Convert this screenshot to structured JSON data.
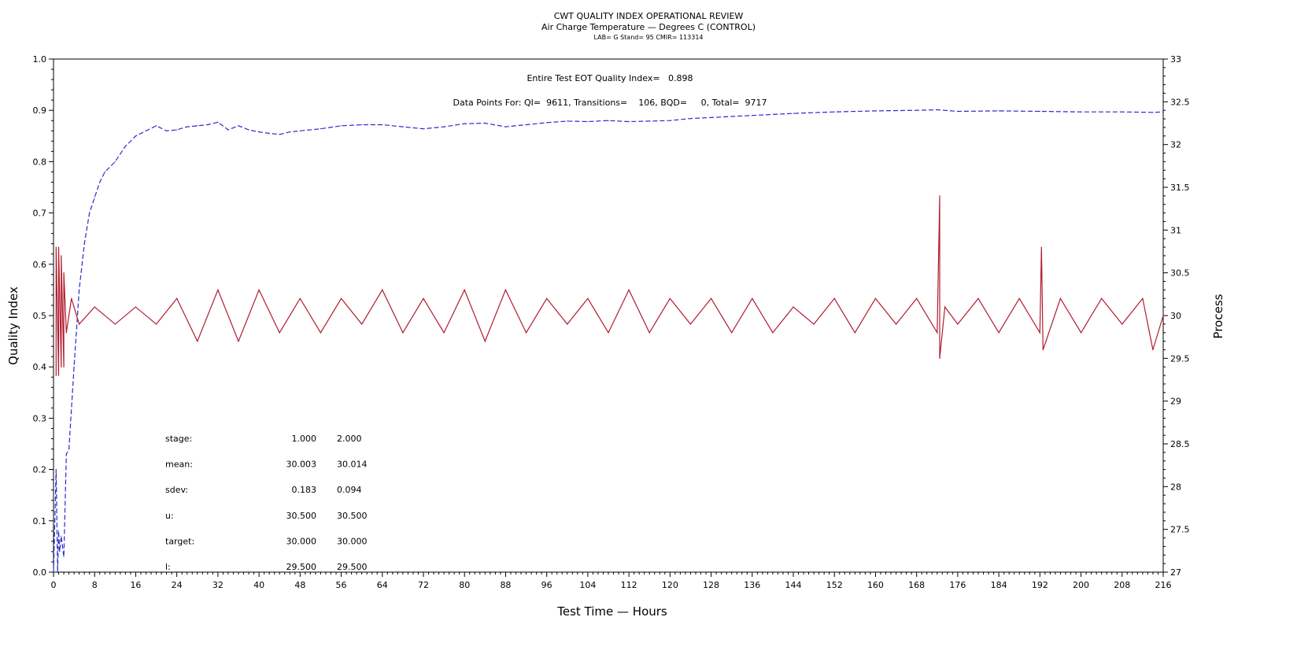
{
  "titles": {
    "line1": "CWT QUALITY INDEX OPERATIONAL REVIEW",
    "line2": "Air Charge Temperature — Degrees C (CONTROL)",
    "line3": "LAB= G Stand= 95 CMIR= 113314"
  },
  "annotations": {
    "eot": "Entire Test EOT Quality Index=   0.898",
    "datapoints": "Data Points For: QI=  9611, Transitions=    106, BQD=     0, Total=  9717"
  },
  "stats": {
    "rows": [
      {
        "label": "stage:",
        "v1": "1.000",
        "v2": "2.000"
      },
      {
        "label": "mean:",
        "v1": "30.003",
        "v2": "30.014"
      },
      {
        "label": "sdev:",
        "v1": "0.183",
        "v2": "0.094"
      },
      {
        "label": "u:",
        "v1": "30.500",
        "v2": "30.500"
      },
      {
        "label": "target:",
        "v1": "30.000",
        "v2": "30.000"
      },
      {
        "label": "l:",
        "v1": "29.500",
        "v2": "29.500"
      }
    ]
  },
  "colors": {
    "quality_index": "#2a2acc",
    "process": "#b01c2e",
    "axis": "#000000"
  },
  "chart_data": {
    "type": "line",
    "xlabel": "Test Time — Hours",
    "ylabel": "Quality Index",
    "y2label": "Process",
    "xlim": [
      0,
      216
    ],
    "ylim": [
      0,
      1.0
    ],
    "y2lim": [
      27,
      33
    ],
    "xticks": [
      "0",
      "8",
      "16",
      "24",
      "32",
      "40",
      "48",
      "56",
      "64",
      "72",
      "80",
      "88",
      "96",
      "104",
      "112",
      "120",
      "128",
      "136",
      "144",
      "152",
      "160",
      "168",
      "176",
      "184",
      "192",
      "200",
      "208",
      "216"
    ],
    "yticks": [
      "0.0",
      "0.1",
      "0.2",
      "0.3",
      "0.4",
      "0.5",
      "0.6",
      "0.7",
      "0.8",
      "0.9",
      "1.0"
    ],
    "y2ticks": [
      "27",
      "27.5",
      "28",
      "28.5",
      "29",
      "29.5",
      "30",
      "30.5",
      "31",
      "31.5",
      "32",
      "32.5",
      "33"
    ],
    "grid": false,
    "series": [
      {
        "axis": "left",
        "style": "dashed",
        "x": [
          0,
          0.5,
          0.8,
          1.0,
          1.2,
          1.5,
          2.0,
          2.5,
          3.0,
          4.0,
          5.0,
          6.0,
          7.0,
          8.0,
          9.0,
          10.0,
          12.0,
          14.0,
          16.0,
          18.0,
          20.0,
          22.0,
          24.0,
          26.0,
          28.0,
          30.0,
          32.0,
          34.0,
          36.0,
          38.0,
          40.0,
          42.0,
          44.0,
          46.0,
          48.0,
          52.0,
          56.0,
          60.0,
          64.0,
          68.0,
          72.0,
          76.0,
          80.0,
          84.0,
          88.0,
          92.0,
          96.0,
          100.0,
          104.0,
          108.0,
          112.0,
          116.0,
          120.0,
          124.0,
          128.0,
          136.0,
          144.0,
          152.0,
          160.0,
          168.0,
          172.0,
          176.0,
          184.0,
          192.0,
          200.0,
          208.0,
          214.0,
          216.0
        ],
        "values": [
          0.0,
          0.2,
          0.0,
          0.08,
          0.04,
          0.07,
          0.03,
          0.23,
          0.24,
          0.4,
          0.55,
          0.64,
          0.7,
          0.73,
          0.76,
          0.78,
          0.8,
          0.83,
          0.85,
          0.86,
          0.87,
          0.86,
          0.862,
          0.868,
          0.87,
          0.872,
          0.877,
          0.862,
          0.87,
          0.862,
          0.858,
          0.855,
          0.853,
          0.858,
          0.86,
          0.864,
          0.87,
          0.872,
          0.872,
          0.868,
          0.864,
          0.868,
          0.874,
          0.875,
          0.868,
          0.872,
          0.876,
          0.879,
          0.878,
          0.88,
          0.878,
          0.879,
          0.88,
          0.884,
          0.886,
          0.89,
          0.894,
          0.897,
          0.899,
          0.9,
          0.901,
          0.898,
          0.899,
          0.898,
          0.897,
          0.897,
          0.896,
          0.897
        ]
      },
      {
        "axis": "right",
        "style": "solid",
        "x": [
          0.5,
          0.5,
          1.0,
          1.0,
          1.5,
          1.5,
          2.0,
          2.0,
          2.5,
          3.5,
          5,
          8,
          12,
          16,
          20,
          24,
          28,
          32,
          36,
          40,
          44,
          48,
          52,
          56,
          60,
          64,
          68,
          72,
          76,
          80,
          84,
          88,
          92,
          96,
          100,
          104,
          108,
          112,
          116,
          120,
          124,
          128,
          132,
          136,
          140,
          144,
          148,
          152,
          156,
          160,
          164,
          168,
          172,
          172.5,
          172.5,
          173.5,
          176,
          180,
          184,
          188,
          192,
          192.3,
          192.6,
          196,
          200,
          204,
          208,
          212,
          214,
          216
        ],
        "values": [
          29.3,
          30.8,
          29.3,
          30.8,
          29.4,
          30.7,
          29.4,
          30.5,
          29.8,
          30.2,
          29.9,
          30.1,
          29.9,
          30.1,
          29.9,
          30.2,
          29.7,
          30.3,
          29.7,
          30.3,
          29.8,
          30.2,
          29.8,
          30.2,
          29.9,
          30.3,
          29.8,
          30.2,
          29.8,
          30.3,
          29.7,
          30.3,
          29.8,
          30.2,
          29.9,
          30.2,
          29.8,
          30.3,
          29.8,
          30.2,
          29.9,
          30.2,
          29.8,
          30.2,
          29.8,
          30.1,
          29.9,
          30.2,
          29.8,
          30.2,
          29.9,
          30.2,
          29.8,
          31.4,
          29.5,
          30.1,
          29.9,
          30.2,
          29.8,
          30.2,
          29.8,
          30.8,
          29.6,
          30.2,
          29.8,
          30.2,
          29.9,
          30.2,
          29.6,
          30.0
        ]
      }
    ]
  }
}
